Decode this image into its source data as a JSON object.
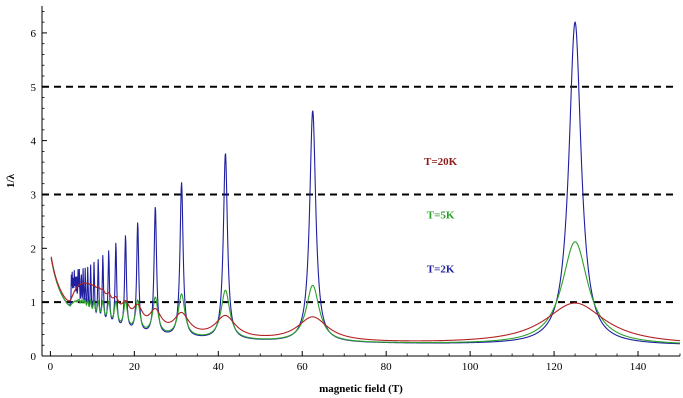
{
  "chart_data": {
    "type": "line",
    "title": "",
    "xlabel": "magnetic field (T)",
    "ylabel": "1/λ",
    "xlim": [
      -2,
      150
    ],
    "ylim": [
      0,
      6.5
    ],
    "xticks": [
      0,
      20,
      40,
      60,
      80,
      100,
      120,
      140
    ],
    "yticks": [
      0,
      1,
      2,
      3,
      4,
      5,
      6
    ],
    "grid": false,
    "legend": "none",
    "reference_lines": [
      {
        "y": 1,
        "style": "dashed",
        "color": "#000000"
      },
      {
        "y": 3,
        "style": "dashed",
        "color": "#000000"
      },
      {
        "y": 5,
        "style": "dashed",
        "color": "#000000"
      }
    ],
    "annotations": [
      {
        "text": "T=20K",
        "x": 82,
        "y": 3.55,
        "color": "#8b1a1a"
      },
      {
        "text": "T=5K",
        "x": 82,
        "y": 2.55,
        "color": "#2ca02c"
      },
      {
        "text": "T=2K",
        "x": 82,
        "y": 1.55,
        "color": "#1f1fa0"
      }
    ],
    "model": {
      "background": {
        "a": 1.75,
        "b": 0.16,
        "c": 90
      },
      "peak_fields": [
        125,
        62.5,
        41.7,
        31.25,
        25,
        20.8,
        17.9,
        15.6,
        13.9,
        12.5,
        11.4,
        10.4,
        9.6,
        8.9,
        8.3,
        7.8,
        7.35,
        6.9,
        6.6,
        6.25,
        5.95,
        5.7,
        5.45,
        5.2,
        5.0
      ]
    },
    "series": [
      {
        "color": "#1f1fa0",
        "peak_heights": [
          6.2,
          4.55,
          3.75,
          3.2,
          2.75,
          2.45,
          2.2,
          2.05,
          1.9,
          1.8,
          1.72,
          1.66,
          1.6,
          1.55,
          1.52,
          1.5,
          1.48,
          1.46,
          1.45,
          1.44,
          1.43,
          1.42,
          1.42,
          1.41,
          1.4
        ],
        "peak_width_factor": 0.014
      },
      {
        "color": "#2ca02c",
        "peak_heights": [
          2.12,
          1.3,
          1.2,
          1.12,
          1.05,
          0.98,
          0.95,
          0.93,
          0.92,
          0.91,
          0.9,
          0.9,
          0.9,
          0.9,
          0.9,
          0.9,
          0.9,
          0.9,
          0.9,
          0.9,
          0.9,
          0.9,
          0.9,
          0.9,
          0.9
        ],
        "peak_width_factor": 0.03
      },
      {
        "color": "#b22222",
        "peak_heights": [
          0.98,
          0.7,
          0.7,
          0.72,
          0.75,
          0.78,
          0.8,
          0.82,
          0.84,
          0.86,
          0.88,
          0.88,
          0.88,
          0.88,
          0.88,
          0.88,
          0.88,
          0.88,
          0.88,
          0.88,
          0.88,
          0.88,
          0.88,
          0.88,
          0.88
        ],
        "peak_width_factor": 0.07
      }
    ]
  }
}
